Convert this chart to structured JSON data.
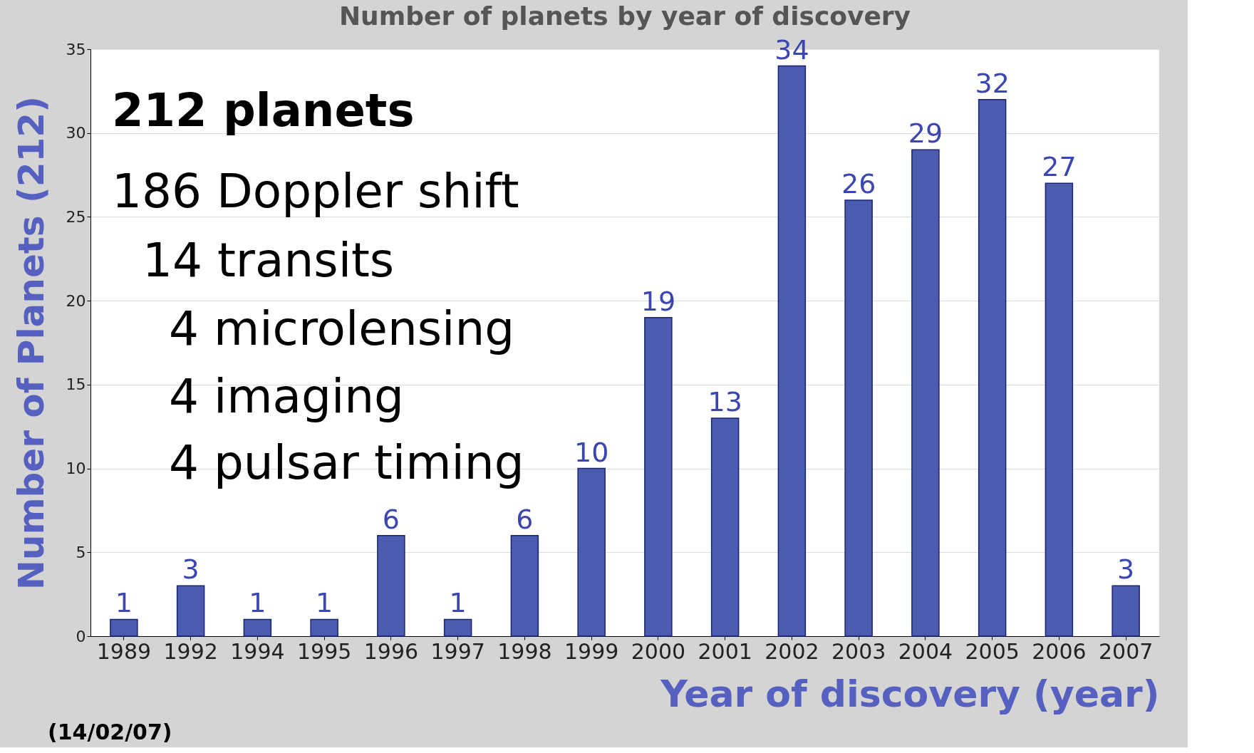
{
  "chart_data": {
    "type": "bar",
    "title": "Number of planets by year of discovery",
    "xlabel": "Year of discovery (year)",
    "ylabel": "Number of Planets (212)",
    "categories": [
      "1989",
      "1992",
      "1994",
      "1995",
      "1996",
      "1997",
      "1998",
      "1999",
      "2000",
      "2001",
      "2002",
      "2003",
      "2004",
      "2005",
      "2006",
      "2007"
    ],
    "values": [
      1,
      3,
      1,
      1,
      6,
      1,
      6,
      10,
      19,
      13,
      34,
      26,
      29,
      32,
      27,
      3
    ],
    "color": "#4a5bb0",
    "ylim": [
      0,
      35
    ],
    "yticks": [
      0,
      5,
      10,
      15,
      20,
      25,
      30,
      35
    ],
    "grid": "y",
    "data_labels": true,
    "annotations": [
      "212 planets",
      "186 Doppler shift",
      "14 transits",
      "4 microlensing",
      "4 imaging",
      "4 pulsar timing",
      "(14/02/07)"
    ]
  }
}
